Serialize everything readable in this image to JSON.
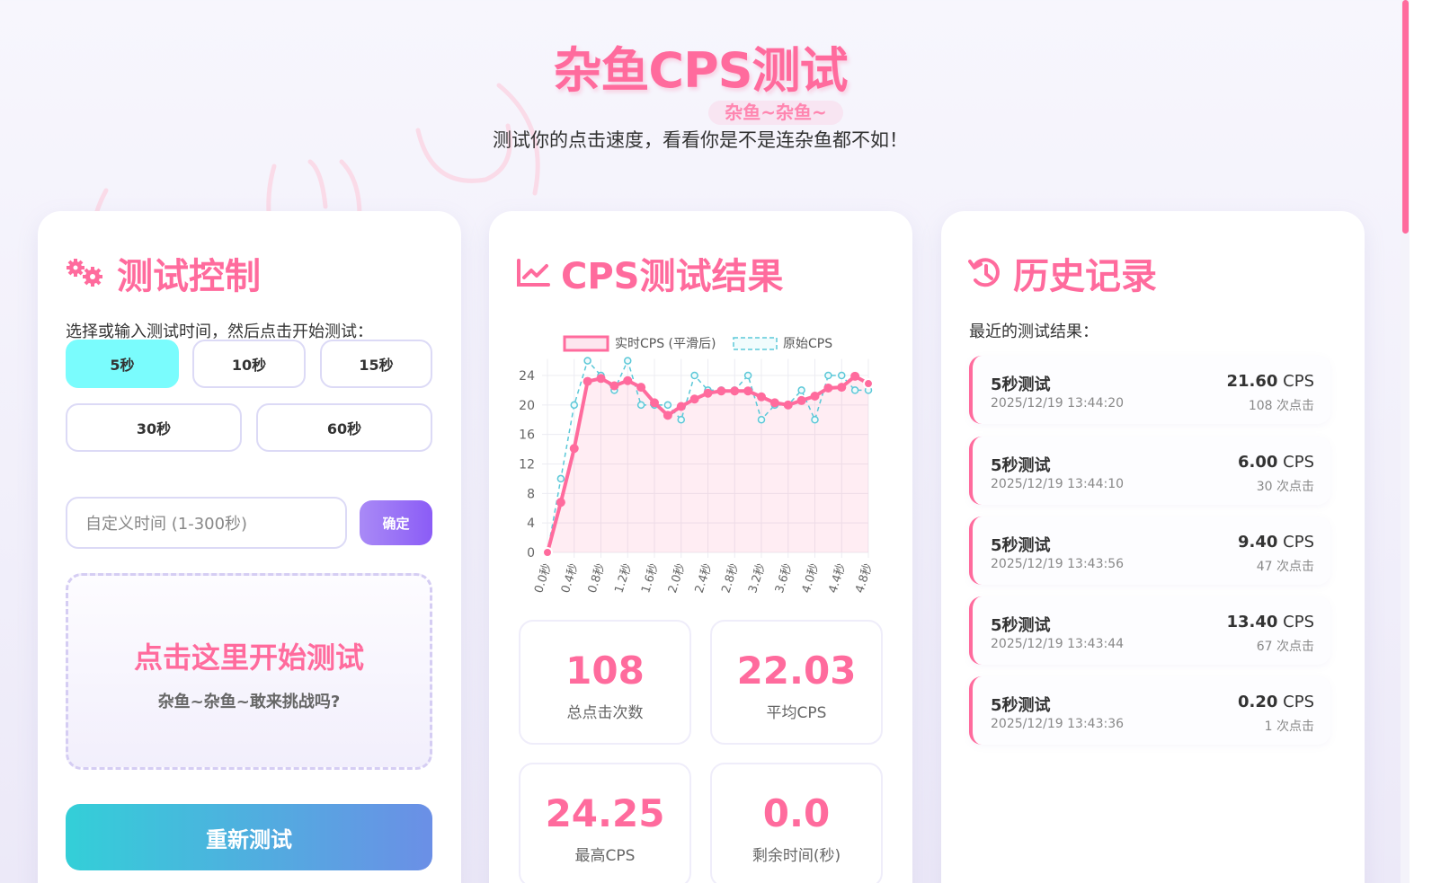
{
  "header": {
    "title": "杂鱼CPS测试",
    "tag": "杂鱼~杂鱼~",
    "subtitle": "测试你的点击速度，看看你是不是连杂鱼都不如！"
  },
  "colors": {
    "accent": "#ff6b9d",
    "active_duration": "#7afcfd",
    "confirm": "#8b5cf6",
    "reset_start": "#33cfd8",
    "reset_end": "#6b8fe6",
    "raw_series": "#5bc8d8"
  },
  "control": {
    "title": "测试控制",
    "icon": "gears-icon",
    "instruction": "选择或输入测试时间，然后点击开始测试：",
    "durations": [
      {
        "label": "5秒",
        "active": true
      },
      {
        "label": "10秒",
        "active": false
      },
      {
        "label": "15秒",
        "active": false
      },
      {
        "label": "30秒",
        "active": false
      },
      {
        "label": "60秒",
        "active": false
      }
    ],
    "custom_placeholder": "自定义时间 (1-300秒)",
    "confirm_label": "确定",
    "click_area": {
      "title": "点击这里开始测试",
      "subtitle": "杂鱼~杂鱼~敢来挑战吗?"
    },
    "reset_label": "重新测试"
  },
  "results": {
    "title": "CPS测试结果",
    "icon": "chart-line-icon",
    "stats": [
      {
        "value": "108",
        "label": "总点击次数"
      },
      {
        "value": "22.03",
        "label": "平均CPS"
      },
      {
        "value": "24.25",
        "label": "最高CPS"
      },
      {
        "value": "0.0",
        "label": "剩余时间(秒)"
      }
    ]
  },
  "chart_data": {
    "type": "line",
    "legend_position": "top",
    "grid": true,
    "ylim": [
      0,
      26
    ],
    "yticks": [
      "0",
      "4",
      "8",
      "12",
      "16",
      "20",
      "24"
    ],
    "x": [
      "0.0秒",
      "0.2秒",
      "0.4秒",
      "0.6秒",
      "0.8秒",
      "1.0秒",
      "1.2秒",
      "1.4秒",
      "1.6秒",
      "1.8秒",
      "2.0秒",
      "2.2秒",
      "2.4秒",
      "2.6秒",
      "2.8秒",
      "3.0秒",
      "3.2秒",
      "3.4秒",
      "3.6秒",
      "3.8秒",
      "4.0秒",
      "4.2秒",
      "4.4秒",
      "4.6秒",
      "4.8秒"
    ],
    "series": [
      {
        "name": "实时CPS (平滑后)",
        "color": "#ff6b9d",
        "fill": true,
        "values": [
          0,
          6.8,
          14.1,
          23.2,
          23.6,
          22.6,
          23.3,
          22.4,
          20.3,
          18.6,
          19.8,
          20.8,
          21.6,
          21.9,
          21.9,
          21.9,
          21.1,
          20.3,
          20.0,
          20.6,
          21.2,
          22.3,
          22.4,
          23.9,
          22.9
        ]
      },
      {
        "name": "原始CPS",
        "color": "#5bc8d8",
        "dashed": true,
        "values": [
          0,
          10,
          20,
          26,
          24,
          22,
          26,
          20,
          20,
          20,
          18,
          24,
          22,
          22,
          22,
          24,
          18,
          20,
          20,
          22,
          18,
          24,
          24,
          22,
          22
        ]
      }
    ]
  },
  "history": {
    "title": "历史记录",
    "icon": "history-icon",
    "subtitle": "最近的测试结果：",
    "items": [
      {
        "name": "5秒测试",
        "time": "2025/12/19 13:44:20",
        "cps": "21.60",
        "unit": "CPS",
        "clicks": "108 次点击"
      },
      {
        "name": "5秒测试",
        "time": "2025/12/19 13:44:10",
        "cps": "6.00",
        "unit": "CPS",
        "clicks": "30 次点击"
      },
      {
        "name": "5秒测试",
        "time": "2025/12/19 13:43:56",
        "cps": "9.40",
        "unit": "CPS",
        "clicks": "47 次点击"
      },
      {
        "name": "5秒测试",
        "time": "2025/12/19 13:43:44",
        "cps": "13.40",
        "unit": "CPS",
        "clicks": "67 次点击"
      },
      {
        "name": "5秒测试",
        "time": "2025/12/19 13:43:36",
        "cps": "0.20",
        "unit": "CPS",
        "clicks": "1 次点击"
      }
    ]
  }
}
